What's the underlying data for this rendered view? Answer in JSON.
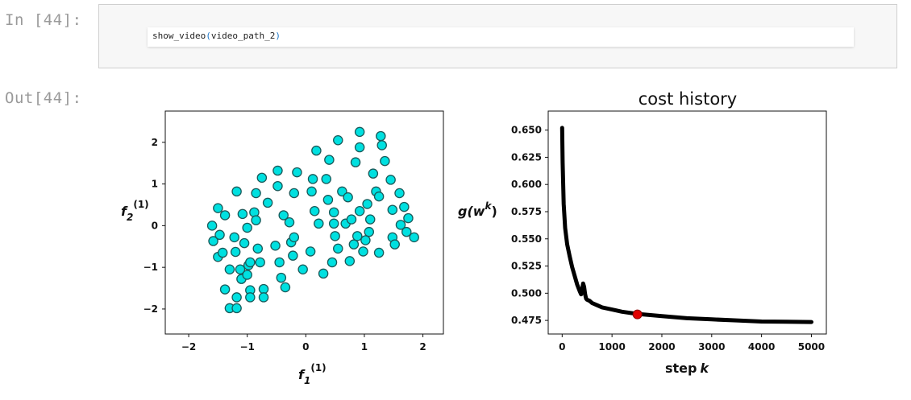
{
  "cell": {
    "in_prompt": "In [44]:",
    "out_prompt": "Out[44]:",
    "code": {
      "func": "show_video",
      "open": "(",
      "arg": "video_path_2",
      "close": ")"
    }
  },
  "chart_data": [
    {
      "type": "scatter",
      "title": "",
      "xlabel": "f",
      "xlabel_sub": "1",
      "xlabel_sup": "(1)",
      "ylabel": "f",
      "ylabel_sub": "2",
      "ylabel_sup": "(1)",
      "xlim": [
        -2.4,
        2.35
      ],
      "ylim": [
        -2.6,
        2.75
      ],
      "xticks": [
        -2,
        -1,
        0,
        1,
        2
      ],
      "yticks": [
        -2,
        -1,
        0,
        1,
        2
      ],
      "xtick_labels": [
        "−2",
        "−1",
        "0",
        "1",
        "2"
      ],
      "ytick_labels": [
        "−2",
        "−1",
        "0",
        "1",
        "2"
      ],
      "grid": false,
      "marker_color": "#00e0e0",
      "marker_edge": "#1a5a5a",
      "points": [
        [
          -1.6,
          0.0
        ],
        [
          -1.58,
          -0.37
        ],
        [
          -1.5,
          0.42
        ],
        [
          -1.47,
          -0.22
        ],
        [
          -1.5,
          -0.75
        ],
        [
          -1.42,
          -0.65
        ],
        [
          -1.38,
          0.25
        ],
        [
          -1.38,
          -1.53
        ],
        [
          -1.3,
          -1.05
        ],
        [
          -1.3,
          -1.98
        ],
        [
          -1.22,
          -0.28
        ],
        [
          -1.2,
          -0.63
        ],
        [
          -1.18,
          0.82
        ],
        [
          -1.18,
          -1.98
        ],
        [
          -1.18,
          -1.72
        ],
        [
          -1.12,
          -1.05
        ],
        [
          -1.1,
          -1.28
        ],
        [
          -1.08,
          0.28
        ],
        [
          -1.05,
          -0.42
        ],
        [
          -1.0,
          -0.05
        ],
        [
          -1.0,
          -1.18
        ],
        [
          -0.98,
          -0.95
        ],
        [
          -0.95,
          -0.88
        ],
        [
          -0.95,
          -1.55
        ],
        [
          -0.95,
          -1.72
        ],
        [
          -0.88,
          0.32
        ],
        [
          -0.85,
          0.78
        ],
        [
          -0.85,
          0.13
        ],
        [
          -0.82,
          -0.55
        ],
        [
          -0.78,
          -0.88
        ],
        [
          -0.75,
          1.15
        ],
        [
          -0.72,
          -1.52
        ],
        [
          -0.72,
          -1.72
        ],
        [
          -0.65,
          0.55
        ],
        [
          -0.52,
          -0.48
        ],
        [
          -0.48,
          1.32
        ],
        [
          -0.48,
          0.95
        ],
        [
          -0.45,
          -0.88
        ],
        [
          -0.42,
          -1.25
        ],
        [
          -0.38,
          0.25
        ],
        [
          -0.35,
          -1.48
        ],
        [
          -0.28,
          0.08
        ],
        [
          -0.25,
          -0.4
        ],
        [
          -0.22,
          -0.72
        ],
        [
          -0.2,
          -0.28
        ],
        [
          -0.2,
          0.78
        ],
        [
          -0.15,
          1.28
        ],
        [
          -0.05,
          -1.05
        ],
        [
          0.08,
          -0.62
        ],
        [
          0.1,
          0.82
        ],
        [
          0.12,
          1.12
        ],
        [
          0.15,
          0.35
        ],
        [
          0.18,
          1.8
        ],
        [
          0.22,
          0.05
        ],
        [
          0.3,
          -1.15
        ],
        [
          0.35,
          1.12
        ],
        [
          0.38,
          0.62
        ],
        [
          0.4,
          1.58
        ],
        [
          0.45,
          -0.88
        ],
        [
          0.48,
          0.32
        ],
        [
          0.48,
          0.05
        ],
        [
          0.5,
          -0.25
        ],
        [
          0.55,
          -0.55
        ],
        [
          0.55,
          2.05
        ],
        [
          0.62,
          0.82
        ],
        [
          0.68,
          0.05
        ],
        [
          0.72,
          0.68
        ],
        [
          0.75,
          -0.85
        ],
        [
          0.78,
          0.15
        ],
        [
          0.82,
          -0.45
        ],
        [
          0.85,
          1.52
        ],
        [
          0.88,
          -0.25
        ],
        [
          0.92,
          2.25
        ],
        [
          0.92,
          0.35
        ],
        [
          0.92,
          1.88
        ],
        [
          0.98,
          -0.62
        ],
        [
          1.02,
          -0.35
        ],
        [
          1.05,
          0.52
        ],
        [
          1.08,
          -0.15
        ],
        [
          1.1,
          0.15
        ],
        [
          1.15,
          1.25
        ],
        [
          1.2,
          0.82
        ],
        [
          1.25,
          0.7
        ],
        [
          1.25,
          -0.65
        ],
        [
          1.28,
          2.15
        ],
        [
          1.3,
          1.93
        ],
        [
          1.35,
          1.55
        ],
        [
          1.45,
          1.1
        ],
        [
          1.48,
          0.38
        ],
        [
          1.48,
          -0.28
        ],
        [
          1.52,
          -0.45
        ],
        [
          1.6,
          0.78
        ],
        [
          1.62,
          0.02
        ],
        [
          1.68,
          0.45
        ],
        [
          1.72,
          -0.15
        ],
        [
          1.75,
          0.18
        ],
        [
          1.85,
          -0.28
        ]
      ]
    },
    {
      "type": "line",
      "title": "cost history",
      "xlabel": "step",
      "xlabel_var": "k",
      "ylabel": "g(w",
      "ylabel_sup": "k",
      "ylabel_close": ")",
      "xlim": [
        -280,
        5300
      ],
      "ylim": [
        0.4625,
        0.6675
      ],
      "xticks": [
        0,
        1000,
        2000,
        3000,
        4000,
        5000
      ],
      "yticks": [
        0.475,
        0.5,
        0.525,
        0.55,
        0.575,
        0.6,
        0.625,
        0.65
      ],
      "xtick_labels": [
        "0",
        "1000",
        "2000",
        "3000",
        "4000",
        "5000"
      ],
      "ytick_labels": [
        "0.475",
        "0.500",
        "0.525",
        "0.550",
        "0.575",
        "0.600",
        "0.625",
        "0.650"
      ],
      "grid": false,
      "line_color": "#000000",
      "series": [
        {
          "x": [
            0,
            10,
            30,
            60,
            100,
            150,
            200,
            250,
            300,
            350,
            380,
            400,
            420,
            440,
            460,
            480,
            500,
            550,
            600,
            700,
            800,
            1000,
            1200,
            1500,
            2000,
            2500,
            3000,
            3500,
            4000,
            4500,
            5000
          ],
          "y": [
            0.652,
            0.62,
            0.582,
            0.56,
            0.545,
            0.534,
            0.524,
            0.516,
            0.508,
            0.502,
            0.499,
            0.503,
            0.509,
            0.506,
            0.499,
            0.495,
            0.494,
            0.493,
            0.491,
            0.489,
            0.487,
            0.485,
            0.483,
            0.481,
            0.479,
            0.477,
            0.476,
            0.475,
            0.474,
            0.4738,
            0.4735
          ]
        }
      ],
      "highlight_point": {
        "x": 1510,
        "y": 0.4805,
        "color": "#e00000"
      }
    }
  ]
}
